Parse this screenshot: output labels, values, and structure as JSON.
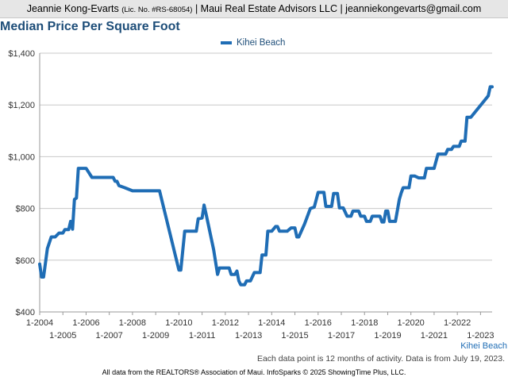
{
  "header": {
    "name": "Jeannie Kong-Evarts",
    "license": "(Lic. No. #RS-68054)",
    "rest": "| Maui Real Estate Advisors LLC | jeanniekongevarts@gmail.com"
  },
  "footer": {
    "note": "Each data point is 12 months of activity. Data is from July 19, 2023.",
    "credit": "All data from the REALTORS® Association of Maui. InfoSparks © 2025 ShowingTime Plus, LLC."
  },
  "colors": {
    "series": "#1f6db5",
    "title": "#1e4e79",
    "grid": "#c8c8c8"
  },
  "chart_data": {
    "type": "line",
    "title": "Median Price Per Square Foot",
    "area_label": "Kihei Beach",
    "ylim": [
      400,
      1400
    ],
    "yticks": [
      400,
      600,
      800,
      1000,
      1200,
      1400
    ],
    "ytick_labels": [
      "$400",
      "$600",
      "$800",
      "$1,000",
      "$1,200",
      "$1,400"
    ],
    "xlim": [
      "2004-01",
      "2023-07"
    ],
    "xticks_top": [
      "1-2004",
      "1-2006",
      "1-2008",
      "1-2010",
      "1-2012",
      "1-2014",
      "1-2016",
      "1-2018",
      "1-2020",
      "1-2022"
    ],
    "xticks_bottom": [
      "1-2005",
      "1-2007",
      "1-2009",
      "1-2011",
      "1-2013",
      "1-2015",
      "1-2017",
      "1-2019",
      "1-2021",
      "1-2023"
    ],
    "grid": true,
    "legend": "top-center",
    "series": [
      {
        "name": "Kihei Beach",
        "points": [
          [
            "2004-01",
            585
          ],
          [
            "2004-02",
            535
          ],
          [
            "2004-03",
            535
          ],
          [
            "2004-05",
            645
          ],
          [
            "2004-07",
            690
          ],
          [
            "2004-09",
            690
          ],
          [
            "2004-11",
            705
          ],
          [
            "2005-01",
            705
          ],
          [
            "2005-02",
            718
          ],
          [
            "2005-04",
            718
          ],
          [
            "2005-05",
            750
          ],
          [
            "2005-06",
            720
          ],
          [
            "2005-07",
            835
          ],
          [
            "2005-08",
            840
          ],
          [
            "2005-09",
            955
          ],
          [
            "2005-11",
            955
          ],
          [
            "2006-01",
            955
          ],
          [
            "2006-04",
            920
          ],
          [
            "2006-07",
            920
          ],
          [
            "2007-01",
            920
          ],
          [
            "2007-03",
            920
          ],
          [
            "2007-04",
            905
          ],
          [
            "2007-05",
            905
          ],
          [
            "2007-06",
            888
          ],
          [
            "2007-09",
            880
          ],
          [
            "2008-01",
            868
          ],
          [
            "2008-06",
            868
          ],
          [
            "2009-01",
            868
          ],
          [
            "2009-03",
            868
          ],
          [
            "2010-01",
            562
          ],
          [
            "2010-02",
            562
          ],
          [
            "2010-04",
            712
          ],
          [
            "2010-07",
            712
          ],
          [
            "2010-10",
            712
          ],
          [
            "2010-11",
            760
          ],
          [
            "2011-01",
            763
          ],
          [
            "2011-02",
            813
          ],
          [
            "2011-03",
            780
          ],
          [
            "2011-07",
            640
          ],
          [
            "2011-09",
            545
          ],
          [
            "2011-10",
            570
          ],
          [
            "2011-12",
            570
          ],
          [
            "2012-01",
            570
          ],
          [
            "2012-03",
            570
          ],
          [
            "2012-04",
            545
          ],
          [
            "2012-06",
            545
          ],
          [
            "2012-07",
            558
          ],
          [
            "2012-08",
            520
          ],
          [
            "2012-09",
            505
          ],
          [
            "2012-11",
            505
          ],
          [
            "2012-12",
            520
          ],
          [
            "2013-02",
            520
          ],
          [
            "2013-04",
            552
          ],
          [
            "2013-06",
            552
          ],
          [
            "2013-07",
            552
          ],
          [
            "2013-08",
            620
          ],
          [
            "2013-10",
            620
          ],
          [
            "2013-11",
            712
          ],
          [
            "2014-01",
            712
          ],
          [
            "2014-03",
            730
          ],
          [
            "2014-04",
            730
          ],
          [
            "2014-05",
            712
          ],
          [
            "2014-09",
            712
          ],
          [
            "2014-11",
            725
          ],
          [
            "2015-01",
            725
          ],
          [
            "2015-02",
            690
          ],
          [
            "2015-03",
            690
          ],
          [
            "2015-06",
            740
          ],
          [
            "2015-09",
            800
          ],
          [
            "2015-11",
            805
          ],
          [
            "2016-01",
            862
          ],
          [
            "2016-04",
            862
          ],
          [
            "2016-05",
            808
          ],
          [
            "2016-08",
            808
          ],
          [
            "2016-09",
            858
          ],
          [
            "2016-11",
            858
          ],
          [
            "2016-12",
            802
          ],
          [
            "2017-02",
            802
          ],
          [
            "2017-04",
            770
          ],
          [
            "2017-06",
            770
          ],
          [
            "2017-07",
            790
          ],
          [
            "2017-10",
            790
          ],
          [
            "2017-11",
            770
          ],
          [
            "2018-01",
            770
          ],
          [
            "2018-02",
            750
          ],
          [
            "2018-04",
            750
          ],
          [
            "2018-05",
            770
          ],
          [
            "2018-09",
            770
          ],
          [
            "2018-10",
            748
          ],
          [
            "2018-11",
            748
          ],
          [
            "2018-12",
            790
          ],
          [
            "2019-01",
            790
          ],
          [
            "2019-02",
            750
          ],
          [
            "2019-05",
            750
          ],
          [
            "2019-07",
            835
          ],
          [
            "2019-08",
            860
          ],
          [
            "2019-09",
            880
          ],
          [
            "2019-12",
            880
          ],
          [
            "2020-01",
            925
          ],
          [
            "2020-03",
            925
          ],
          [
            "2020-05",
            918
          ],
          [
            "2020-08",
            918
          ],
          [
            "2020-09",
            955
          ],
          [
            "2021-01",
            955
          ],
          [
            "2021-03",
            1010
          ],
          [
            "2021-07",
            1010
          ],
          [
            "2021-08",
            1028
          ],
          [
            "2021-10",
            1028
          ],
          [
            "2021-11",
            1040
          ],
          [
            "2022-02",
            1040
          ],
          [
            "2022-03",
            1060
          ],
          [
            "2022-05",
            1060
          ],
          [
            "2022-06",
            1152
          ],
          [
            "2022-08",
            1152
          ],
          [
            "2023-05",
            1235
          ],
          [
            "2023-06",
            1270
          ],
          [
            "2023-07",
            1270
          ]
        ]
      }
    ]
  }
}
